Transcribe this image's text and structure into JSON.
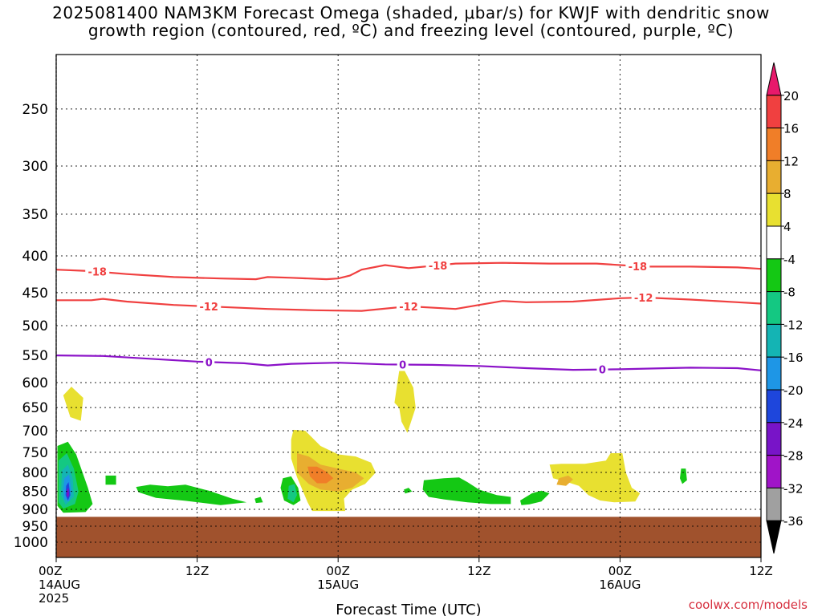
{
  "title_line1": "2025081400 NAM3KM Forecast Omega (shaded, μbar/s) for KWJF with dendritic snow",
  "title_line2": "growth region (contoured, red, ºC) and freezing level (contoured, purple, ºC)",
  "footer": "coolwx.com/models",
  "chart_data": {
    "type": "contour",
    "xlabel": "Forecast Time (UTC)",
    "x_range_hours": [
      0,
      60
    ],
    "y_axis": {
      "scale": "log-pressure",
      "reversed": true,
      "range": [
        210,
        1050
      ]
    },
    "y_ticks": [
      250,
      300,
      350,
      400,
      450,
      500,
      550,
      600,
      650,
      700,
      750,
      800,
      850,
      900,
      950,
      1000
    ],
    "x_ticks": [
      {
        "hour": 0,
        "lines": [
          "00Z",
          "14AUG",
          "2025"
        ]
      },
      {
        "hour": 12,
        "lines": [
          "12Z"
        ]
      },
      {
        "hour": 24,
        "lines": [
          "00Z",
          "15AUG"
        ]
      },
      {
        "hour": 36,
        "lines": [
          "12Z"
        ]
      },
      {
        "hour": 48,
        "lines": [
          "00Z",
          "16AUG"
        ]
      },
      {
        "hour": 60,
        "lines": [
          "12Z"
        ]
      }
    ],
    "grid": true,
    "colorbar": {
      "labels": [
        "20",
        "16",
        "12",
        "8",
        "4",
        "-4",
        "-8",
        "-12",
        "-16",
        "-20",
        "-24",
        "-28",
        "-32",
        "-36"
      ],
      "colors": [
        "#e8196b",
        "#f04040",
        "#f07e28",
        "#e8ae30",
        "#e8e030",
        "#ffffff",
        "#14c814",
        "#14c882",
        "#14b4b4",
        "#1e96e6",
        "#1e46dc",
        "#7814c8",
        "#a014c8",
        "#a0a0a0",
        "#000000"
      ]
    },
    "ground": {
      "top_hpa": 922,
      "color": "#a0522d"
    },
    "contours": [
      {
        "level": -18,
        "label": "-18",
        "color": "#f04040",
        "points": [
          [
            0,
            418
          ],
          [
            3,
            420
          ],
          [
            6,
            424
          ],
          [
            10,
            428
          ],
          [
            14,
            430
          ],
          [
            17,
            431
          ],
          [
            18,
            428
          ],
          [
            20,
            429
          ],
          [
            23,
            431
          ],
          [
            24,
            430
          ],
          [
            25,
            426
          ],
          [
            26,
            418
          ],
          [
            28,
            412
          ],
          [
            30,
            416
          ],
          [
            32,
            413
          ],
          [
            34,
            410
          ],
          [
            38,
            409
          ],
          [
            42,
            410
          ],
          [
            46,
            410
          ],
          [
            50,
            414
          ],
          [
            54,
            414
          ],
          [
            58,
            415
          ],
          [
            60,
            417
          ]
        ],
        "label_hours": [
          3.5,
          32.5,
          49.5
        ]
      },
      {
        "level": -12,
        "label": "-12",
        "color": "#f04040",
        "points": [
          [
            0,
            461
          ],
          [
            3,
            461
          ],
          [
            4,
            459
          ],
          [
            6,
            463
          ],
          [
            10,
            468
          ],
          [
            14,
            471
          ],
          [
            18,
            474
          ],
          [
            22,
            476
          ],
          [
            26,
            477
          ],
          [
            30,
            470
          ],
          [
            34,
            474
          ],
          [
            36,
            468
          ],
          [
            38,
            462
          ],
          [
            40,
            464
          ],
          [
            44,
            463
          ],
          [
            48,
            458
          ],
          [
            50,
            457
          ],
          [
            54,
            460
          ],
          [
            58,
            464
          ],
          [
            60,
            466
          ]
        ],
        "label_hours": [
          13,
          30,
          50
        ]
      },
      {
        "level": 0,
        "label": "0",
        "color": "#8b12c8",
        "points": [
          [
            0,
            550
          ],
          [
            4,
            551
          ],
          [
            8,
            556
          ],
          [
            12,
            561
          ],
          [
            16,
            564
          ],
          [
            18,
            568
          ],
          [
            20,
            565
          ],
          [
            24,
            563
          ],
          [
            28,
            566
          ],
          [
            32,
            567
          ],
          [
            36,
            569
          ],
          [
            40,
            573
          ],
          [
            44,
            576
          ],
          [
            48,
            575
          ],
          [
            52,
            573
          ],
          [
            54,
            572
          ],
          [
            58,
            573
          ],
          [
            60,
            577
          ]
        ],
        "label_hours": [
          13,
          29.5,
          46.5
        ]
      }
    ],
    "omega_regions": [
      {
        "level": "4 to 8",
        "color": "#e8e030",
        "outline": [
          [
            0.6,
            625
          ],
          [
            1.3,
            608
          ],
          [
            2.3,
            630
          ],
          [
            2.1,
            678
          ],
          [
            1.2,
            670
          ]
        ]
      },
      {
        "level": "-4 to -8",
        "color": "#14c814",
        "outline": [
          [
            0.1,
            735
          ],
          [
            1,
            725
          ],
          [
            1.7,
            755
          ],
          [
            2.7,
            840
          ],
          [
            3.1,
            885
          ],
          [
            2.5,
            908
          ],
          [
            0.6,
            910
          ],
          [
            0.1,
            890
          ]
        ]
      },
      {
        "level": "-8 to -12",
        "color": "#14c882",
        "outline": [
          [
            0.2,
            770
          ],
          [
            0.9,
            752
          ],
          [
            1.5,
            790
          ],
          [
            1.9,
            850
          ],
          [
            1.6,
            885
          ],
          [
            0.6,
            898
          ],
          [
            0.2,
            880
          ]
        ]
      },
      {
        "level": "-12 to -16",
        "color": "#14b4b4",
        "outline": [
          [
            0.5,
            795
          ],
          [
            1,
            780
          ],
          [
            1.4,
            815
          ],
          [
            1.5,
            865
          ],
          [
            0.8,
            887
          ],
          [
            0.4,
            860
          ]
        ]
      },
      {
        "level": "-16 to -20",
        "color": "#1e96e6",
        "outline": [
          [
            0.7,
            815
          ],
          [
            1.1,
            805
          ],
          [
            1.3,
            850
          ],
          [
            1.1,
            878
          ],
          [
            0.7,
            872
          ],
          [
            0.6,
            845
          ]
        ]
      },
      {
        "level": "-20 to -24",
        "color": "#1e46dc",
        "outline": [
          [
            0.85,
            835
          ],
          [
            1.05,
            825
          ],
          [
            1.2,
            860
          ],
          [
            1.0,
            875
          ],
          [
            0.8,
            860
          ]
        ]
      },
      {
        "level": "-24 to -28",
        "color": "#7814c8",
        "outline": [
          [
            0.92,
            845
          ],
          [
            1.05,
            840
          ],
          [
            1.1,
            860
          ],
          [
            0.95,
            868
          ],
          [
            0.88,
            858
          ]
        ]
      },
      {
        "level": "-4 to -8",
        "color": "#14c814",
        "outline": [
          [
            4.2,
            808
          ],
          [
            5.1,
            808
          ],
          [
            5.1,
            832
          ],
          [
            4.2,
            832
          ]
        ]
      },
      {
        "level": "-4 to -8",
        "color": "#14c814",
        "outline": [
          [
            6.8,
            838
          ],
          [
            8,
            832
          ],
          [
            9.5,
            836
          ],
          [
            11,
            832
          ],
          [
            13,
            848
          ],
          [
            15,
            870
          ],
          [
            16.2,
            880
          ],
          [
            14,
            888
          ],
          [
            11,
            876
          ],
          [
            8.5,
            868
          ],
          [
            7,
            852
          ]
        ]
      },
      {
        "level": "-4 to -8",
        "color": "#14c814",
        "outline": [
          [
            16.9,
            870
          ],
          [
            17.4,
            865
          ],
          [
            17.6,
            880
          ],
          [
            17,
            882
          ]
        ]
      },
      {
        "level": "4 to 8",
        "color": "#e8e030",
        "outline": [
          [
            20.2,
            698
          ],
          [
            21.2,
            700
          ],
          [
            22.5,
            735
          ],
          [
            24,
            755
          ],
          [
            25.5,
            760
          ],
          [
            26.8,
            775
          ],
          [
            27.2,
            800
          ],
          [
            26.3,
            830
          ],
          [
            25.2,
            845
          ],
          [
            24.5,
            870
          ],
          [
            24.6,
            905
          ],
          [
            21.8,
            905
          ],
          [
            21.4,
            880
          ],
          [
            20.5,
            812
          ],
          [
            20,
            765
          ],
          [
            20,
            720
          ]
        ]
      },
      {
        "level": "8 to 12",
        "color": "#e8ae30",
        "outline": [
          [
            20.5,
            752
          ],
          [
            21.5,
            760
          ],
          [
            22.5,
            780
          ],
          [
            24,
            790
          ],
          [
            25.5,
            800
          ],
          [
            26.2,
            815
          ],
          [
            25.2,
            840
          ],
          [
            24,
            850
          ],
          [
            22.5,
            845
          ],
          [
            21.5,
            830
          ],
          [
            20.5,
            800
          ]
        ]
      },
      {
        "level": "12 to 16",
        "color": "#f07e28",
        "outline": [
          [
            21.4,
            785
          ],
          [
            22.2,
            785
          ],
          [
            23,
            798
          ],
          [
            23.6,
            815
          ],
          [
            23,
            828
          ],
          [
            22.2,
            828
          ],
          [
            21.6,
            810
          ]
        ]
      },
      {
        "level": "-4 to -8",
        "color": "#14c814",
        "outline": [
          [
            19.3,
            815
          ],
          [
            20,
            810
          ],
          [
            20.6,
            840
          ],
          [
            20.8,
            875
          ],
          [
            20.2,
            888
          ],
          [
            19.4,
            875
          ],
          [
            19.1,
            840
          ]
        ]
      },
      {
        "level": "-8 to -12",
        "color": "#14c882",
        "outline": [
          [
            19.8,
            835
          ],
          [
            20.3,
            830
          ],
          [
            20.5,
            860
          ],
          [
            20.2,
            880
          ],
          [
            19.7,
            870
          ]
        ]
      },
      {
        "level": "4 to 8",
        "color": "#e8e030",
        "outline": [
          [
            29.2,
            578
          ],
          [
            29.6,
            575
          ],
          [
            30.4,
            610
          ],
          [
            30.6,
            650
          ],
          [
            29.9,
            705
          ],
          [
            29.4,
            680
          ],
          [
            29.2,
            650
          ],
          [
            28.8,
            640
          ]
        ]
      },
      {
        "level": "-4 to -8",
        "color": "#14c814",
        "outline": [
          [
            29.6,
            845
          ],
          [
            30,
            840
          ],
          [
            30.3,
            850
          ],
          [
            29.7,
            856
          ]
        ]
      },
      {
        "level": "-4 to -8",
        "color": "#14c814",
        "outline": [
          [
            31.3,
            820
          ],
          [
            33,
            815
          ],
          [
            34.3,
            813
          ],
          [
            35,
            825
          ],
          [
            36,
            845
          ],
          [
            37.5,
            860
          ],
          [
            38.7,
            865
          ],
          [
            38.7,
            885
          ],
          [
            37,
            885
          ],
          [
            35,
            880
          ],
          [
            33,
            872
          ],
          [
            31.7,
            865
          ],
          [
            31.2,
            845
          ]
        ]
      },
      {
        "level": "-4 to -8",
        "color": "#14c814",
        "outline": [
          [
            39.5,
            875
          ],
          [
            40.5,
            855
          ],
          [
            41.3,
            848
          ],
          [
            42,
            855
          ],
          [
            41.3,
            878
          ],
          [
            40.3,
            886
          ],
          [
            39.6,
            888
          ]
        ]
      },
      {
        "level": "4 to 8",
        "color": "#e8e030",
        "outline": [
          [
            42,
            780
          ],
          [
            43,
            778
          ],
          [
            45,
            778
          ],
          [
            46.8,
            770
          ],
          [
            47.2,
            752
          ],
          [
            48.2,
            752
          ],
          [
            48.5,
            800
          ],
          [
            49,
            840
          ],
          [
            49.7,
            855
          ],
          [
            49.3,
            878
          ],
          [
            47.5,
            880
          ],
          [
            46.3,
            875
          ],
          [
            45.3,
            860
          ],
          [
            44.5,
            835
          ],
          [
            43.5,
            825
          ],
          [
            42.3,
            815
          ]
        ]
      },
      {
        "level": "8 to 12",
        "color": "#e8ae30",
        "outline": [
          [
            42.8,
            815
          ],
          [
            43.6,
            808
          ],
          [
            44,
            818
          ],
          [
            43.4,
            835
          ],
          [
            42.6,
            832
          ]
        ]
      },
      {
        "level": "-4 to -8",
        "color": "#14c814",
        "outline": [
          [
            53.2,
            790
          ],
          [
            53.6,
            790
          ],
          [
            53.7,
            820
          ],
          [
            53.3,
            830
          ],
          [
            53.1,
            815
          ]
        ]
      }
    ]
  }
}
